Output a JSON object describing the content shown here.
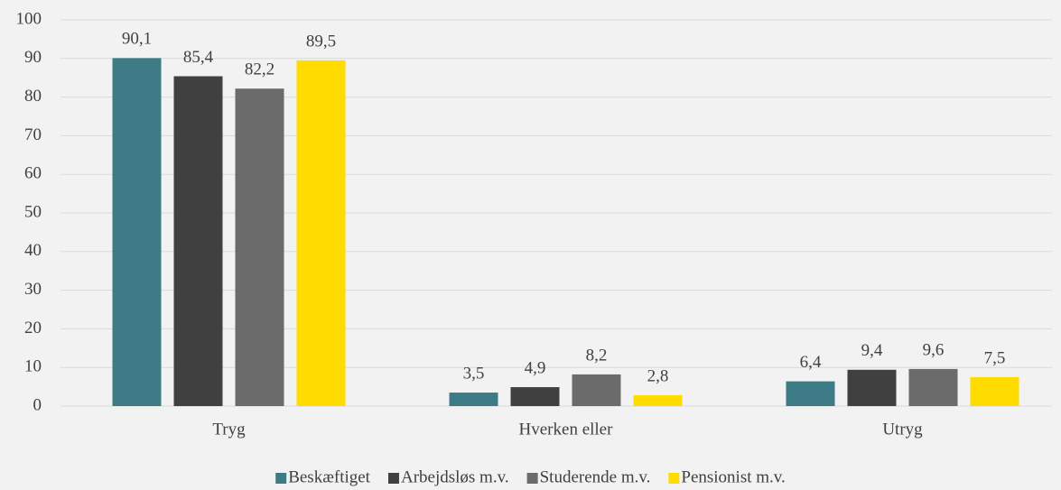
{
  "chart_data": {
    "type": "bar",
    "categories": [
      "Tryg",
      "Hverken eller",
      "Utryg"
    ],
    "series": [
      {
        "name": "Beskæftiget",
        "color": "#3d7c86",
        "values": [
          90.1,
          3.5,
          6.4
        ],
        "value_labels": [
          "90,1",
          "3,5",
          "6,4"
        ]
      },
      {
        "name": "Arbejdsløs m.v.",
        "color": "#404040",
        "values": [
          85.4,
          4.9,
          9.4
        ],
        "value_labels": [
          "85,4",
          "4,9",
          "9,4"
        ]
      },
      {
        "name": "Studerende m.v.",
        "color": "#6b6b6b",
        "values": [
          82.2,
          8.2,
          9.6
        ],
        "value_labels": [
          "82,2",
          "8,2",
          "9,6"
        ]
      },
      {
        "name": "Pensionist m.v.",
        "color": "#ffdb00",
        "values": [
          89.5,
          2.8,
          7.5
        ],
        "value_labels": [
          "89,5",
          "2,8",
          "7,5"
        ]
      }
    ],
    "ylim": [
      0,
      100
    ],
    "yticks": [
      0,
      10,
      20,
      30,
      40,
      50,
      60,
      70,
      80,
      90,
      100
    ],
    "grid": true,
    "legend": "bottom"
  }
}
